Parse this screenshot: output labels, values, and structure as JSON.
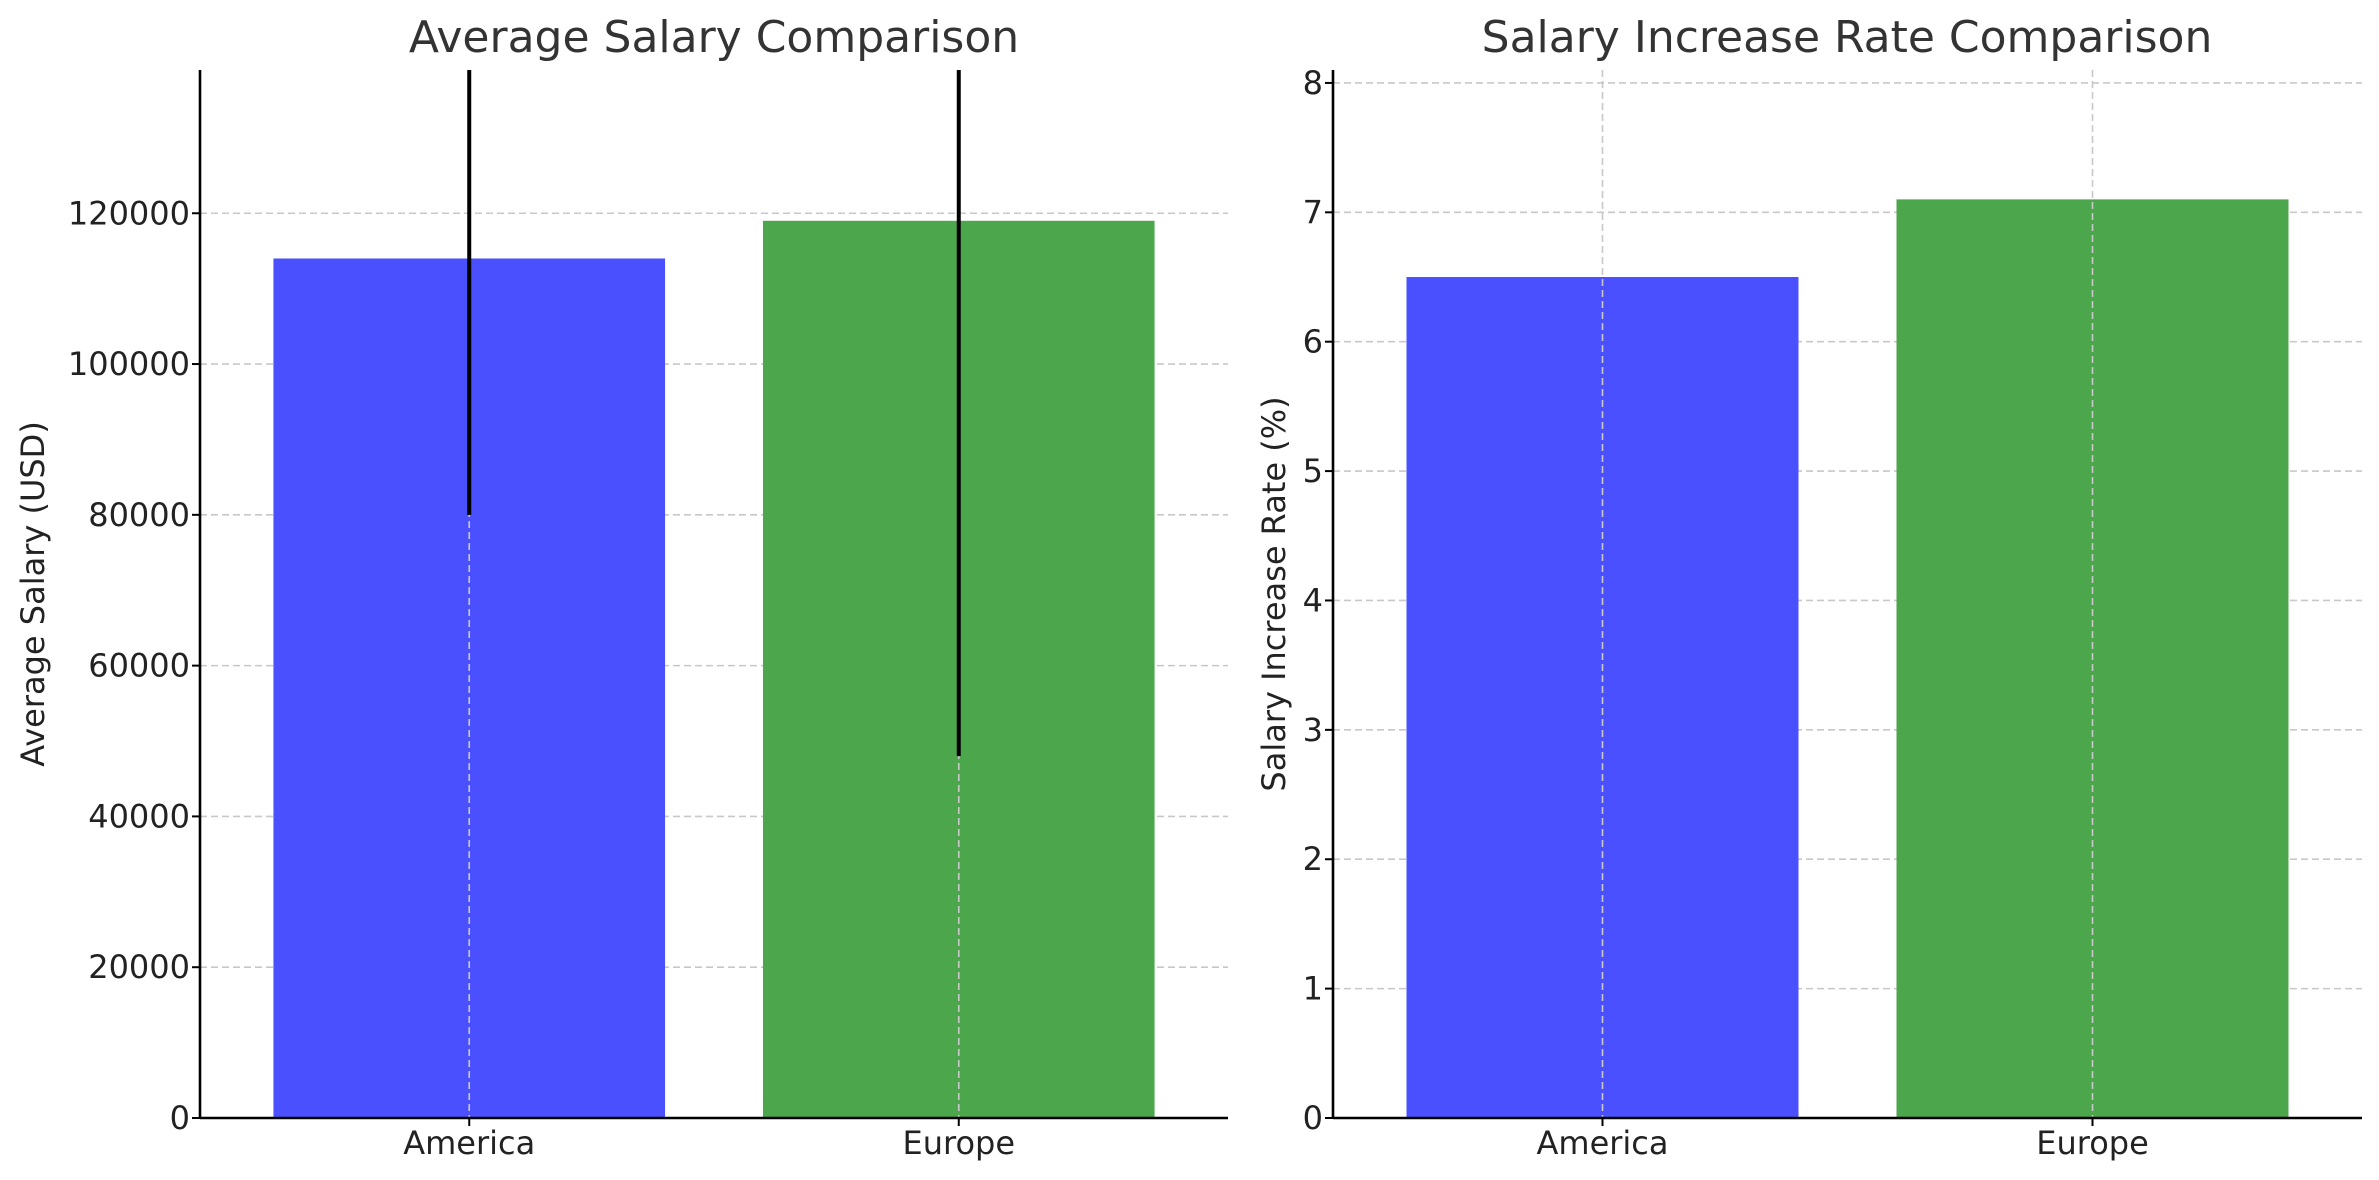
{
  "chart_data": [
    {
      "type": "bar",
      "title": "Average Salary Comparison",
      "xlabel": "",
      "ylabel": "Average Salary (USD)",
      "categories": [
        "America",
        "Europe"
      ],
      "values": [
        114000,
        119000
      ],
      "error": [
        34000,
        71000
      ],
      "colors": [
        "#4b50ff",
        "#4ca64c"
      ],
      "ylim": [
        0,
        139000
      ],
      "yticks": [
        0,
        20000,
        40000,
        60000,
        80000,
        100000,
        120000
      ],
      "grid": true
    },
    {
      "type": "bar",
      "title": "Salary Increase Rate Comparison",
      "xlabel": "",
      "ylabel": "Salary Increase Rate (%)",
      "categories": [
        "America",
        "Europe"
      ],
      "values": [
        6.5,
        7.1
      ],
      "colors": [
        "#4b50ff",
        "#4ca64c"
      ],
      "ylim": [
        0,
        8.1
      ],
      "yticks": [
        0,
        1,
        2,
        3,
        4,
        5,
        6,
        7,
        8
      ],
      "grid": true
    }
  ]
}
